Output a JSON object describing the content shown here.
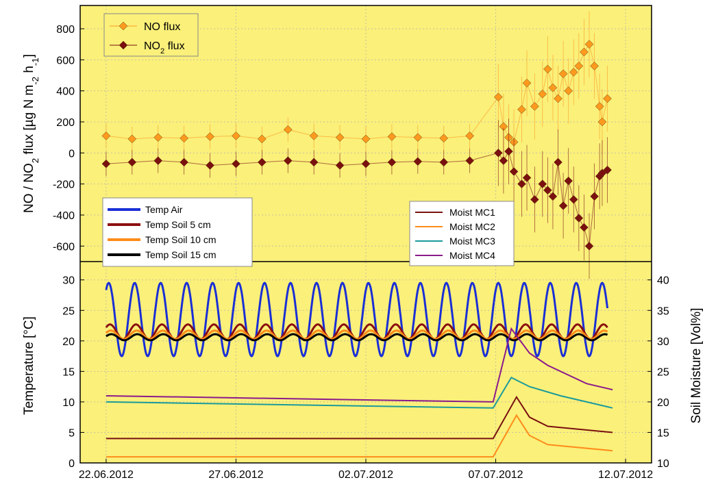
{
  "chart_data": [
    {
      "type": "scatter",
      "panel": "top",
      "ylabel_parts": [
        "NO / NO",
        "2",
        " flux [µg N m",
        "-2",
        " h",
        "-1",
        "]"
      ],
      "ylim": [
        -700,
        950
      ],
      "yticks": [
        -600,
        -400,
        -200,
        0,
        200,
        400,
        600,
        800
      ],
      "background": "#faf07a",
      "legend": [
        {
          "label_parts": [
            "NO flux"
          ],
          "color": "#ff9a1f"
        },
        {
          "label_parts": [
            "NO",
            "2",
            " flux"
          ],
          "color": "#7a1010"
        }
      ],
      "series": [
        {
          "name": "NO flux",
          "color": "#ff9a1f",
          "marker": "diamond",
          "x": [
            0,
            1,
            2,
            3,
            4,
            5,
            6,
            7,
            8,
            9,
            10,
            11,
            12,
            13,
            14,
            15.1,
            15.3,
            15.5,
            15.7,
            16.0,
            16.2,
            16.5,
            16.8,
            17.0,
            17.2,
            17.4,
            17.6,
            17.8,
            18.0,
            18.2,
            18.4,
            18.6,
            18.8,
            19.0,
            19.1,
            19.3
          ],
          "y": [
            110,
            90,
            100,
            95,
            105,
            110,
            90,
            150,
            110,
            100,
            90,
            105,
            100,
            95,
            110,
            360,
            170,
            100,
            70,
            280,
            450,
            300,
            380,
            540,
            420,
            350,
            510,
            400,
            520,
            560,
            650,
            700,
            560,
            300,
            200,
            350
          ]
        },
        {
          "name": "NO2 flux",
          "color": "#7a1010",
          "marker": "diamond",
          "x": [
            0,
            1,
            2,
            3,
            4,
            5,
            6,
            7,
            8,
            9,
            10,
            11,
            12,
            13,
            14,
            15.1,
            15.3,
            15.5,
            15.7,
            16.0,
            16.2,
            16.5,
            16.8,
            17.0,
            17.2,
            17.4,
            17.6,
            17.8,
            18.0,
            18.2,
            18.4,
            18.6,
            18.8,
            19.0,
            19.1,
            19.3
          ],
          "y": [
            -70,
            -60,
            -50,
            -60,
            -80,
            -70,
            -60,
            -50,
            -60,
            -80,
            -70,
            -60,
            -55,
            -60,
            -50,
            0,
            -50,
            10,
            -120,
            -200,
            -160,
            -300,
            -200,
            -240,
            -280,
            -60,
            -340,
            -180,
            -300,
            -420,
            -480,
            -600,
            -280,
            -150,
            -130,
            -110
          ]
        }
      ]
    },
    {
      "type": "line",
      "panel": "bottom",
      "ylabel": "Temperature [°C]",
      "ylabel_right": "Soil Moisture [Vol%]",
      "ylim": [
        0,
        33
      ],
      "yticks": [
        0,
        5,
        10,
        15,
        20,
        25,
        30
      ],
      "ylim_right": [
        10,
        43
      ],
      "yticks_right": [
        10,
        15,
        20,
        25,
        30,
        35,
        40
      ],
      "xlim": [
        -1,
        21
      ],
      "xtick_values": [
        0,
        5,
        10,
        15,
        20
      ],
      "xticks": [
        "22.06.2012",
        "27.06.2012",
        "02.07.2012",
        "07.07.2012",
        "12.07.2012"
      ],
      "background": "#faf07a",
      "legend_temp": [
        {
          "label": "Temp Air",
          "color": "#1a2fd6"
        },
        {
          "label": "Temp Soil 5 cm",
          "color": "#8b0f0f"
        },
        {
          "label": "Temp Soil 10 cm",
          "color": "#ff8c1a"
        },
        {
          "label": "Temp Soil 15 cm",
          "color": "#000000"
        }
      ],
      "legend_moist": [
        {
          "label": "Moist MC1",
          "color": "#7a1010"
        },
        {
          "label": "Moist MC2",
          "color": "#ff8c1a"
        },
        {
          "label": "Moist MC3",
          "color": "#1a9a9a"
        },
        {
          "label": "Moist MC4",
          "color": "#8b1a8b"
        }
      ],
      "temperature_series": [
        {
          "name": "Temp Air",
          "color": "#1a2fd6",
          "mean": 23.5,
          "amplitude": 6,
          "phase": 0.1
        },
        {
          "name": "Temp Soil 5 cm",
          "color": "#8b0f0f",
          "mean": 21.5,
          "amplitude": 1.2,
          "phase": 0.15
        },
        {
          "name": "Temp Soil 10 cm",
          "color": "#ff8c1a",
          "mean": 21,
          "amplitude": 0.7,
          "phase": 0.18
        },
        {
          "name": "Temp Soil 15 cm",
          "color": "#000000",
          "mean": 20.6,
          "amplitude": 0.5,
          "phase": 0.2
        }
      ],
      "moisture_series": [
        {
          "name": "Moist MC1",
          "color": "#7a1010",
          "points": [
            [
              0,
              14
            ],
            [
              14.9,
              14
            ],
            [
              15.8,
              20.8
            ],
            [
              16.3,
              17.5
            ],
            [
              17.0,
              16
            ],
            [
              19.5,
              15
            ]
          ]
        },
        {
          "name": "Moist MC2",
          "color": "#ff8c1a",
          "points": [
            [
              0,
              11
            ],
            [
              14.9,
              11
            ],
            [
              15.8,
              17.8
            ],
            [
              16.3,
              14.5
            ],
            [
              17.0,
              13
            ],
            [
              19.5,
              12
            ]
          ]
        },
        {
          "name": "Moist MC3",
          "color": "#1a9a9a",
          "points": [
            [
              0,
              20
            ],
            [
              14.9,
              19
            ],
            [
              15.6,
              24
            ],
            [
              16.3,
              22.5
            ],
            [
              17.5,
              21
            ],
            [
              19.5,
              19
            ]
          ]
        },
        {
          "name": "Moist MC4",
          "color": "#8b1a8b",
          "points": [
            [
              0,
              21
            ],
            [
              14.9,
              20
            ],
            [
              15.6,
              32
            ],
            [
              16.3,
              28
            ],
            [
              17.0,
              26
            ],
            [
              18.5,
              23
            ],
            [
              19.5,
              22
            ]
          ]
        }
      ]
    }
  ]
}
